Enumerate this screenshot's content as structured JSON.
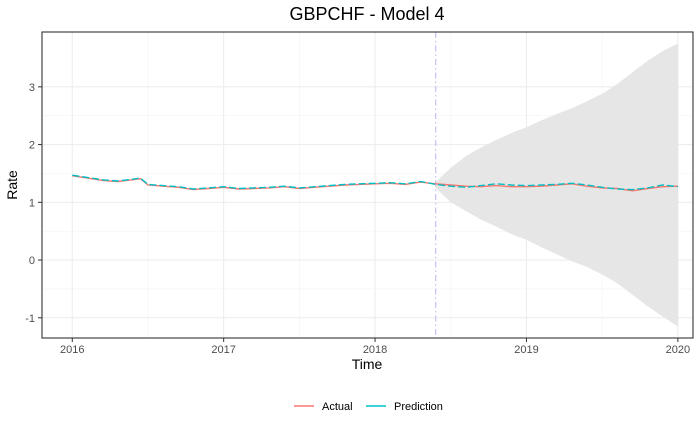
{
  "chart_data": {
    "type": "line",
    "title": "GBPCHF - Model 4",
    "xlabel": "Time",
    "ylabel": "Rate",
    "x_range": [
      2015.8,
      2020.1
    ],
    "y_range": [
      -1.35,
      3.95
    ],
    "x_ticks": [
      {
        "value": 2016,
        "label": "2016"
      },
      {
        "value": 2017,
        "label": "2017"
      },
      {
        "value": 2018,
        "label": "2018"
      },
      {
        "value": 2019,
        "label": "2019"
      },
      {
        "value": 2020,
        "label": "2020"
      }
    ],
    "y_ticks": [
      {
        "value": -1,
        "label": "-1"
      },
      {
        "value": 0,
        "label": "0"
      },
      {
        "value": 1,
        "label": "1"
      },
      {
        "value": 2,
        "label": "2"
      },
      {
        "value": 3,
        "label": "3"
      }
    ],
    "grid": true,
    "forecast_start": 2018.4,
    "legend_position": "bottom",
    "colors": {
      "actual": "#F8766D",
      "prediction": "#00BFC4",
      "band": "#e6e6e6",
      "vline": "#c8c4f5"
    },
    "series": [
      {
        "name": "Actual",
        "x": [
          2016.0,
          2016.1,
          2016.2,
          2016.3,
          2016.4,
          2016.45,
          2016.5,
          2016.6,
          2016.7,
          2016.8,
          2016.9,
          2017.0,
          2017.1,
          2017.2,
          2017.3,
          2017.4,
          2017.5,
          2017.6,
          2017.7,
          2017.8,
          2017.9,
          2018.0,
          2018.1,
          2018.2,
          2018.3,
          2018.4,
          2018.5,
          2018.6,
          2018.7,
          2018.8,
          2018.9,
          2019.0,
          2019.1,
          2019.2,
          2019.3,
          2019.4,
          2019.5,
          2019.6,
          2019.7,
          2019.8,
          2019.9,
          2020.0
        ],
        "y": [
          1.46,
          1.42,
          1.38,
          1.36,
          1.39,
          1.41,
          1.3,
          1.28,
          1.26,
          1.22,
          1.24,
          1.26,
          1.23,
          1.24,
          1.25,
          1.27,
          1.24,
          1.26,
          1.28,
          1.3,
          1.31,
          1.32,
          1.33,
          1.31,
          1.35,
          1.32,
          1.3,
          1.28,
          1.27,
          1.29,
          1.27,
          1.27,
          1.28,
          1.3,
          1.32,
          1.28,
          1.25,
          1.24,
          1.2,
          1.24,
          1.27,
          1.28
        ]
      },
      {
        "name": "Prediction",
        "x": [
          2016.0,
          2016.1,
          2016.2,
          2016.3,
          2016.4,
          2016.45,
          2016.5,
          2016.6,
          2016.7,
          2016.8,
          2016.9,
          2017.0,
          2017.1,
          2017.2,
          2017.3,
          2017.4,
          2017.5,
          2017.6,
          2017.7,
          2017.8,
          2017.9,
          2018.0,
          2018.1,
          2018.2,
          2018.3,
          2018.4,
          2018.5,
          2018.6,
          2018.7,
          2018.8,
          2018.9,
          2019.0,
          2019.1,
          2019.2,
          2019.3,
          2019.4,
          2019.5,
          2019.6,
          2019.7,
          2019.8,
          2019.9,
          2020.0
        ],
        "y": [
          1.47,
          1.43,
          1.39,
          1.37,
          1.4,
          1.42,
          1.31,
          1.29,
          1.27,
          1.23,
          1.25,
          1.27,
          1.24,
          1.25,
          1.26,
          1.28,
          1.25,
          1.27,
          1.29,
          1.31,
          1.32,
          1.33,
          1.34,
          1.32,
          1.36,
          1.31,
          1.28,
          1.26,
          1.29,
          1.32,
          1.3,
          1.29,
          1.3,
          1.31,
          1.33,
          1.3,
          1.26,
          1.23,
          1.22,
          1.25,
          1.3,
          1.27
        ]
      }
    ],
    "band": {
      "name": "prediction interval",
      "x": [
        2018.4,
        2018.5,
        2018.6,
        2018.7,
        2018.8,
        2018.9,
        2019.0,
        2019.1,
        2019.2,
        2019.3,
        2019.4,
        2019.5,
        2019.6,
        2019.7,
        2019.8,
        2019.9,
        2020.0
      ],
      "upper": [
        1.35,
        1.6,
        1.8,
        1.95,
        2.08,
        2.2,
        2.3,
        2.42,
        2.53,
        2.63,
        2.75,
        2.88,
        3.05,
        3.25,
        3.45,
        3.62,
        3.75
      ],
      "lower": [
        1.25,
        1.0,
        0.85,
        0.7,
        0.58,
        0.45,
        0.35,
        0.22,
        0.1,
        -0.02,
        -0.12,
        -0.25,
        -0.4,
        -0.6,
        -0.8,
        -0.98,
        -1.15
      ]
    }
  }
}
